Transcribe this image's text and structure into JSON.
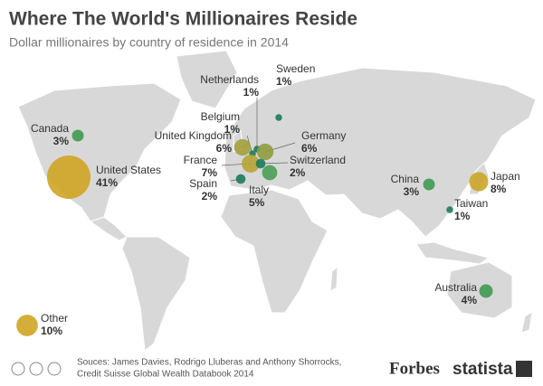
{
  "header": {
    "title": "Where The World's Millionaires Reside",
    "subtitle": "Dollar millionaires by country of residence in 2014"
  },
  "chart_data": {
    "type": "bubble-map",
    "categories": [
      "Canada",
      "United States",
      "United Kingdom",
      "Belgium",
      "Netherlands",
      "Sweden",
      "Germany",
      "France",
      "Switzerland",
      "Spain",
      "Italy",
      "China",
      "Japan",
      "Taiwan",
      "Australia",
      "Other"
    ],
    "values": [
      3,
      41,
      6,
      1,
      1,
      1,
      6,
      7,
      2,
      2,
      5,
      3,
      8,
      1,
      4,
      10
    ],
    "value_labels": [
      "3%",
      "41%",
      "6%",
      "1%",
      "1%",
      "1%",
      "6%",
      "7%",
      "2%",
      "2%",
      "5%",
      "3%",
      "8%",
      "1%",
      "4%",
      "10%"
    ],
    "colors": [
      "#3f9a52",
      "#d0a424",
      "#a3a03c",
      "#1c7a5c",
      "#1c7a5c",
      "#1c7a5c",
      "#8f9d3f",
      "#b7a334",
      "#1c7a5c",
      "#1c7a5c",
      "#4a9e55",
      "#3f9a52",
      "#cca62a",
      "#1c7a5c",
      "#3f9a52",
      "#d0a424"
    ]
  },
  "footer": {
    "sources": [
      "Souces: James Davies, Rodrigo Lluberas and Anthony Shorrocks,",
      "Credit Suisse Global Wealth Databook 2014"
    ],
    "brands": [
      "Forbes",
      "statista"
    ]
  }
}
